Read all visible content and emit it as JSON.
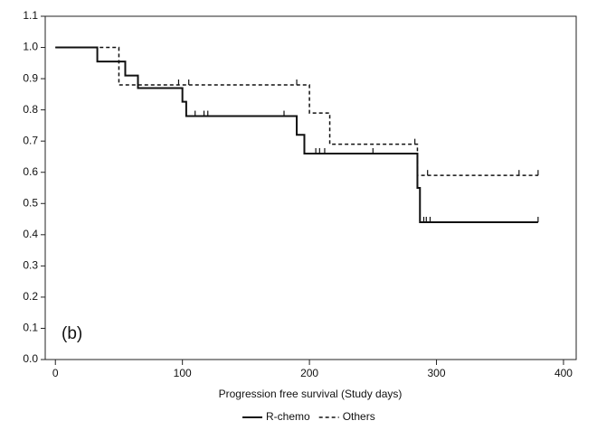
{
  "chart_data": {
    "type": "step",
    "annotation": "(b)",
    "xlabel": "Progression free survival (Study days)",
    "xlim": [
      -8,
      410
    ],
    "xticks": [
      0,
      100,
      200,
      300,
      400
    ],
    "ylim": [
      0,
      1.1
    ],
    "yticks": [
      {
        "value": 0,
        "label": "0.0"
      },
      0.1,
      0.2,
      0.3,
      0.4,
      0.5,
      0.6,
      0.7,
      0.8,
      0.9,
      {
        "value": 1,
        "label": "1.0"
      },
      1.1
    ],
    "legend": "bottom",
    "series": [
      {
        "name": "R-chemo",
        "color": "#111111",
        "dash": "solid",
        "x": [
          0,
          33,
          55,
          65,
          100,
          103,
          190,
          196,
          285,
          287,
          380
        ],
        "values": [
          1.0,
          0.955,
          0.91,
          0.87,
          0.826,
          0.78,
          0.72,
          0.66,
          0.55,
          0.44,
          0.44
        ],
        "censor_x": [
          110,
          117,
          120,
          180,
          205,
          208,
          212,
          250,
          290,
          292,
          295,
          380
        ],
        "censor_y": [
          0.78,
          0.78,
          0.78,
          0.78,
          0.66,
          0.66,
          0.66,
          0.66,
          0.44,
          0.44,
          0.44,
          0.44
        ]
      },
      {
        "name": "Others",
        "color": "#111111",
        "dash": "dashed",
        "x": [
          0,
          50,
          200,
          216,
          285,
          289,
          380
        ],
        "values": [
          1.0,
          0.88,
          0.79,
          0.69,
          0.59,
          0.59,
          0.59
        ],
        "censor_x": [
          97,
          105,
          190,
          283,
          293,
          365,
          380
        ],
        "censor_y": [
          0.88,
          0.88,
          0.88,
          0.69,
          0.59,
          0.59,
          0.59
        ]
      }
    ]
  }
}
